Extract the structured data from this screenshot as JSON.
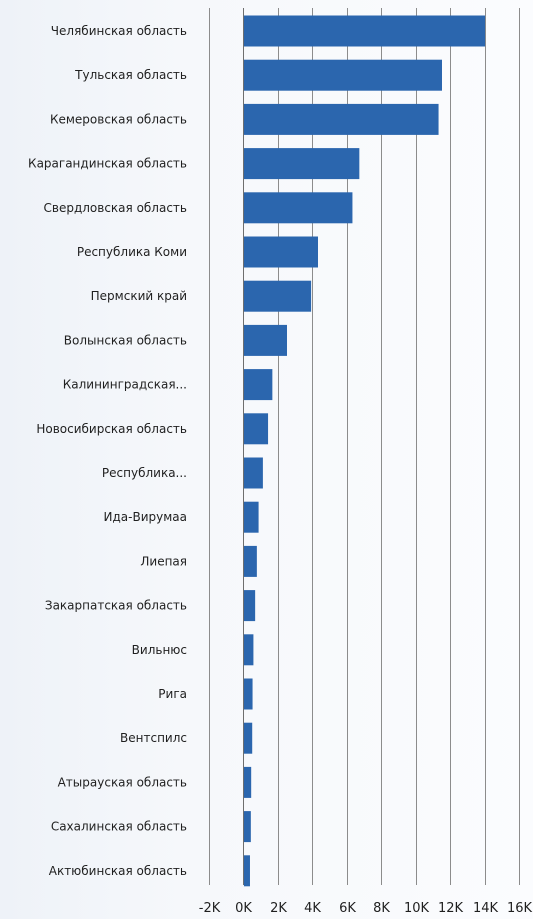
{
  "chart_data": {
    "type": "bar",
    "orientation": "horizontal",
    "categories": [
      "Челябинская область",
      "Тульская область",
      "Кемеровская область",
      "Карагандинская область",
      "Свердловская область",
      "Республика Коми",
      "Пермский край",
      "Волынская область",
      "Калининградская...",
      "Новосибирская область",
      "Республика...",
      "Ида-Вирумаа",
      "Лиепая",
      "Закарпатская область",
      "Вильнюс",
      "Рига",
      "Вентспилс",
      "Атырауская область",
      "Сахалинская область",
      "Актюбинская область"
    ],
    "values": [
      14000,
      11500,
      11300,
      6700,
      6300,
      4300,
      3900,
      2500,
      1650,
      1400,
      1100,
      850,
      750,
      650,
      550,
      500,
      480,
      420,
      400,
      350
    ],
    "xlim": [
      -2000,
      16000
    ],
    "xticks": [
      "-2K",
      "0K",
      "2K",
      "4K",
      "6K",
      "8K",
      "10K",
      "12K",
      "14K",
      "16K"
    ],
    "grid": true,
    "bar_color": "#2b66ae",
    "title": "",
    "xlabel": "",
    "ylabel": ""
  }
}
